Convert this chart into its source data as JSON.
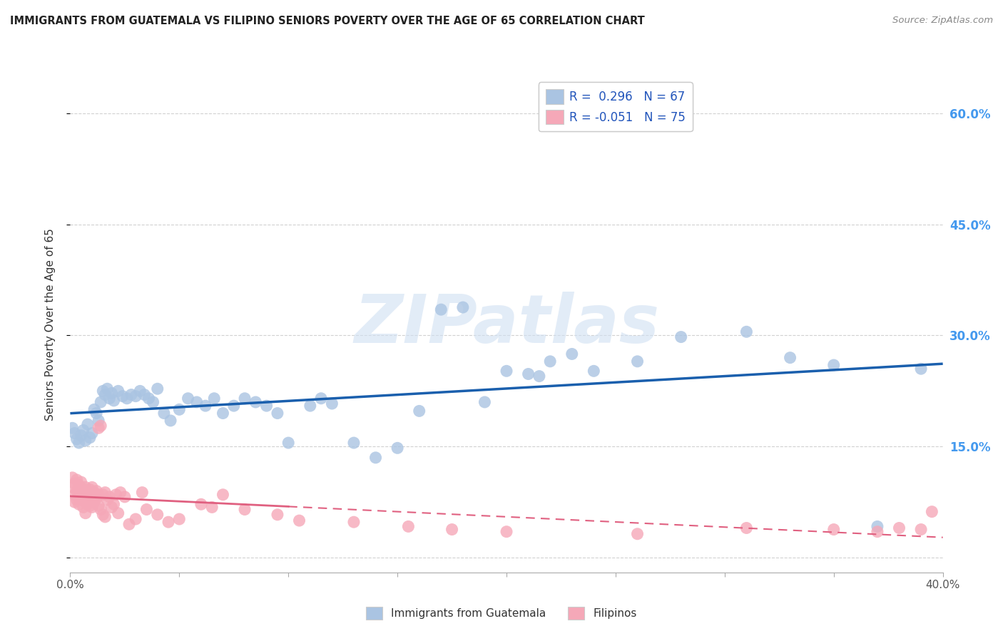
{
  "title": "IMMIGRANTS FROM GUATEMALA VS FILIPINO SENIORS POVERTY OVER THE AGE OF 65 CORRELATION CHART",
  "source": "Source: ZipAtlas.com",
  "ylabel": "Seniors Poverty Over the Age of 65",
  "xlim": [
    0.0,
    0.4
  ],
  "ylim": [
    -0.02,
    0.65
  ],
  "R_blue": 0.296,
  "N_blue": 67,
  "R_pink": -0.051,
  "N_pink": 75,
  "blue_color": "#aac4e2",
  "pink_color": "#f5a8b8",
  "blue_line_color": "#1a5fad",
  "pink_line_color": "#e06080",
  "watermark": "ZIPatlas",
  "legend_label_blue": "Immigrants from Guatemala",
  "legend_label_pink": "Filipinos",
  "background_color": "#ffffff",
  "grid_color": "#cccccc",
  "title_color": "#222222",
  "blue_scatter": {
    "x": [
      0.001,
      0.002,
      0.003,
      0.004,
      0.005,
      0.006,
      0.007,
      0.008,
      0.009,
      0.01,
      0.011,
      0.012,
      0.013,
      0.014,
      0.015,
      0.016,
      0.017,
      0.018,
      0.019,
      0.02,
      0.022,
      0.024,
      0.026,
      0.028,
      0.03,
      0.032,
      0.034,
      0.036,
      0.038,
      0.04,
      0.043,
      0.046,
      0.05,
      0.054,
      0.058,
      0.062,
      0.066,
      0.07,
      0.075,
      0.08,
      0.085,
      0.09,
      0.095,
      0.1,
      0.11,
      0.115,
      0.12,
      0.13,
      0.14,
      0.15,
      0.16,
      0.17,
      0.18,
      0.19,
      0.2,
      0.21,
      0.215,
      0.22,
      0.23,
      0.24,
      0.26,
      0.28,
      0.31,
      0.33,
      0.35,
      0.37,
      0.39
    ],
    "y": [
      0.175,
      0.168,
      0.16,
      0.155,
      0.165,
      0.172,
      0.158,
      0.18,
      0.162,
      0.168,
      0.2,
      0.195,
      0.185,
      0.21,
      0.225,
      0.22,
      0.228,
      0.215,
      0.222,
      0.212,
      0.225,
      0.218,
      0.215,
      0.22,
      0.218,
      0.225,
      0.22,
      0.215,
      0.21,
      0.228,
      0.195,
      0.185,
      0.2,
      0.215,
      0.21,
      0.205,
      0.215,
      0.195,
      0.205,
      0.215,
      0.21,
      0.205,
      0.195,
      0.155,
      0.205,
      0.215,
      0.208,
      0.155,
      0.135,
      0.148,
      0.198,
      0.335,
      0.338,
      0.21,
      0.252,
      0.248,
      0.245,
      0.265,
      0.275,
      0.252,
      0.265,
      0.298,
      0.305,
      0.27,
      0.26,
      0.042,
      0.255
    ]
  },
  "pink_scatter": {
    "x": [
      0.001,
      0.001,
      0.002,
      0.002,
      0.002,
      0.003,
      0.003,
      0.003,
      0.004,
      0.004,
      0.004,
      0.005,
      0.005,
      0.005,
      0.006,
      0.006,
      0.006,
      0.007,
      0.007,
      0.007,
      0.007,
      0.008,
      0.008,
      0.008,
      0.009,
      0.009,
      0.009,
      0.01,
      0.01,
      0.01,
      0.011,
      0.011,
      0.012,
      0.012,
      0.013,
      0.013,
      0.013,
      0.014,
      0.014,
      0.015,
      0.015,
      0.016,
      0.016,
      0.017,
      0.018,
      0.019,
      0.02,
      0.021,
      0.022,
      0.023,
      0.025,
      0.027,
      0.03,
      0.033,
      0.035,
      0.04,
      0.045,
      0.05,
      0.06,
      0.065,
      0.07,
      0.08,
      0.095,
      0.105,
      0.13,
      0.155,
      0.175,
      0.2,
      0.26,
      0.31,
      0.35,
      0.37,
      0.38,
      0.39,
      0.395
    ],
    "y": [
      0.095,
      0.108,
      0.085,
      0.1,
      0.075,
      0.09,
      0.078,
      0.105,
      0.082,
      0.098,
      0.072,
      0.088,
      0.102,
      0.078,
      0.092,
      0.08,
      0.068,
      0.088,
      0.095,
      0.075,
      0.06,
      0.09,
      0.082,
      0.072,
      0.085,
      0.092,
      0.07,
      0.082,
      0.095,
      0.068,
      0.088,
      0.075,
      0.09,
      0.08,
      0.085,
      0.07,
      0.175,
      0.178,
      0.065,
      0.058,
      0.085,
      0.055,
      0.088,
      0.078,
      0.082,
      0.068,
      0.072,
      0.085,
      0.06,
      0.088,
      0.082,
      0.045,
      0.052,
      0.088,
      0.065,
      0.058,
      0.048,
      0.052,
      0.072,
      0.068,
      0.085,
      0.065,
      0.058,
      0.05,
      0.048,
      0.042,
      0.038,
      0.035,
      0.032,
      0.04,
      0.038,
      0.035,
      0.04,
      0.038,
      0.062
    ]
  }
}
